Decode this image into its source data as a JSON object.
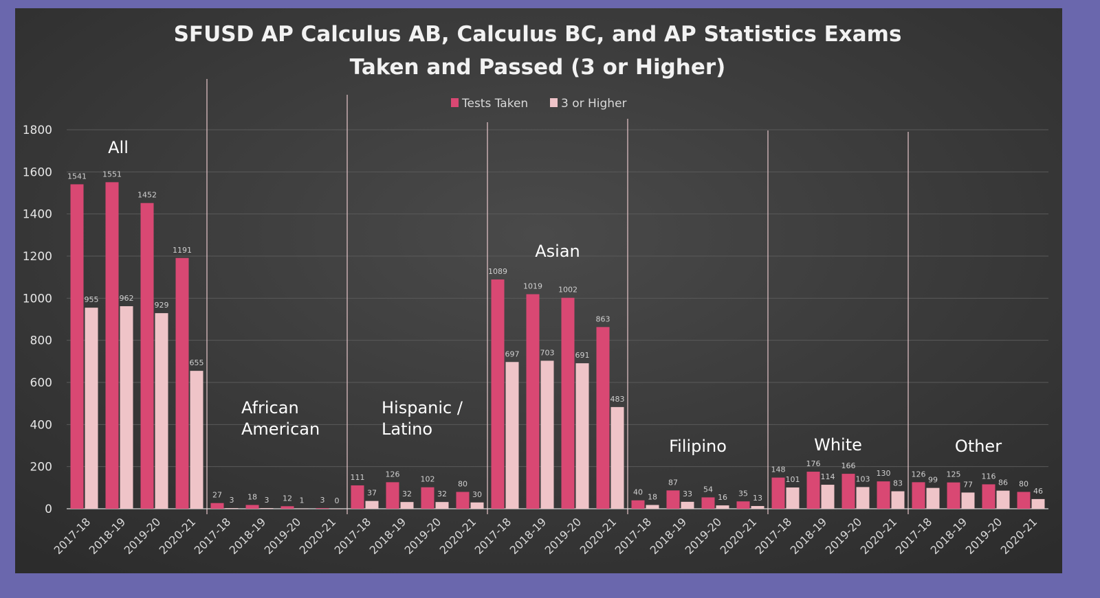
{
  "chart_data": {
    "type": "bar",
    "title": "SFUSD AP Calculus AB, Calculus BC, and AP Statistics Exams",
    "title_line2": "Taken and Passed (3 or Higher)",
    "xlabel": "",
    "ylabel": "",
    "ylim": [
      0,
      1800
    ],
    "yticks": [
      "0",
      "200",
      "400",
      "600",
      "800",
      "1000",
      "1200",
      "1400",
      "1600",
      "1800"
    ],
    "grid": true,
    "legend_position": "top-center",
    "groups": [
      {
        "name_lines": [
          "All"
        ]
      },
      {
        "name_lines": [
          "African",
          "American"
        ]
      },
      {
        "name_lines": [
          "Hispanic /",
          "Latino"
        ]
      },
      {
        "name_lines": [
          "Asian"
        ]
      },
      {
        "name_lines": [
          "Filipino"
        ]
      },
      {
        "name_lines": [
          "White"
        ]
      },
      {
        "name_lines": [
          "Other"
        ]
      }
    ],
    "years": [
      "2017-18",
      "2018-19",
      "2019-20",
      "2020-21"
    ],
    "series": [
      {
        "name": "Tests Taken",
        "color": "#d94873",
        "values": [
          1541,
          1551,
          1452,
          1191,
          27,
          18,
          12,
          3,
          111,
          126,
          102,
          80,
          1089,
          1019,
          1002,
          863,
          40,
          87,
          54,
          35,
          148,
          176,
          166,
          130,
          126,
          125,
          116,
          80
        ]
      },
      {
        "name": "3 or Higher",
        "color": "#efc4c8",
        "values": [
          955,
          962,
          929,
          655,
          3,
          3,
          1,
          0,
          37,
          32,
          32,
          30,
          697,
          703,
          691,
          483,
          18,
          33,
          16,
          13,
          101,
          114,
          103,
          83,
          99,
          77,
          86,
          46
        ]
      }
    ]
  }
}
